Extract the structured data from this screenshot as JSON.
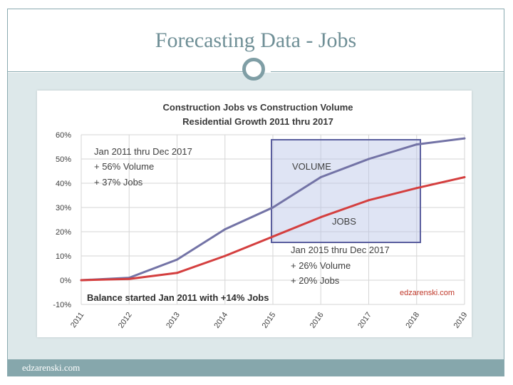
{
  "slide": {
    "title": "Forecasting Data - Jobs",
    "footer": "edzarenski.com"
  },
  "chart_data": {
    "type": "line",
    "title": "Construction Jobs vs Construction Volume",
    "subtitle": "Residential Growth 2011 thru 2017",
    "x": [
      "2011",
      "2012",
      "2013",
      "2014",
      "2015",
      "2016",
      "2017",
      "2018",
      "2019"
    ],
    "y_ticks": [
      "60%",
      "50%",
      "40%",
      "30%",
      "20%",
      "10%",
      "0%",
      "-10%"
    ],
    "ylim": [
      -10,
      60
    ],
    "grid": true,
    "series": [
      {
        "name": "VOLUME",
        "color": "#7373a6",
        "values": [
          0,
          1,
          8.5,
          21,
          30,
          42.5,
          50,
          56,
          58.5
        ]
      },
      {
        "name": "JOBS",
        "color": "#d43f3f",
        "values": [
          0,
          0.5,
          3,
          10,
          18,
          26,
          33,
          38,
          42.5
        ]
      }
    ],
    "annotations": {
      "left_note": [
        "Jan 2011 thru Dec 2017",
        "+ 56% Volume",
        "+ 37% Jobs"
      ],
      "box_note": [
        "Jan 2015 thru Dec 2017",
        "+ 26% Volume",
        "+ 20% Jobs"
      ],
      "bottom_note": "Balance started Jan 2011 with +14% Jobs",
      "watermark": "edzarenski.com"
    }
  }
}
